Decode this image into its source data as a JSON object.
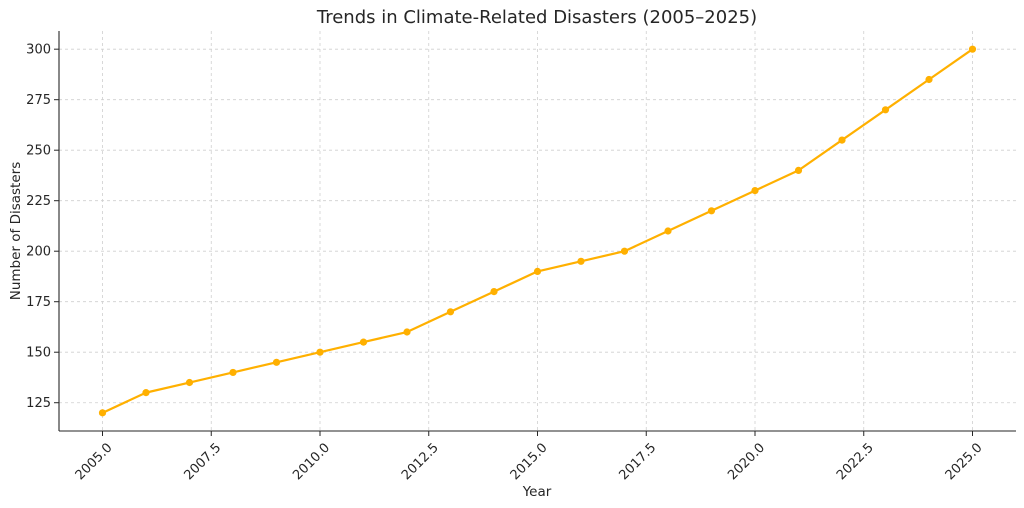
{
  "chart_data": {
    "type": "line",
    "title": "Trends in Climate-Related Disasters (2005–2025)",
    "xlabel": "Year",
    "ylabel": "Number of Disasters",
    "x": [
      2005,
      2006,
      2007,
      2008,
      2009,
      2010,
      2011,
      2012,
      2013,
      2014,
      2015,
      2016,
      2017,
      2018,
      2019,
      2020,
      2021,
      2022,
      2023,
      2024,
      2025
    ],
    "series": [
      {
        "values": [
          120,
          130,
          135,
          140,
          145,
          150,
          155,
          160,
          170,
          180,
          190,
          195,
          200,
          210,
          220,
          230,
          240,
          255,
          270,
          285,
          300
        ],
        "color": "#FFB000"
      }
    ],
    "xlim": [
      2004.0,
      2026.0
    ],
    "ylim": [
      111,
      309
    ],
    "xticks": [
      2005.0,
      2007.5,
      2010.0,
      2012.5,
      2015.0,
      2017.5,
      2020.0,
      2022.5,
      2025.0
    ],
    "xtick_labels": [
      "2005.0",
      "2007.5",
      "2010.0",
      "2012.5",
      "2015.0",
      "2017.5",
      "2020.0",
      "2022.5",
      "2025.0"
    ],
    "yticks": [
      125,
      150,
      175,
      200,
      225,
      250,
      275,
      300
    ],
    "ytick_labels": [
      "125",
      "150",
      "175",
      "200",
      "225",
      "250",
      "275",
      "300"
    ],
    "grid": true,
    "grid_style": "dashed",
    "marker": "circle"
  }
}
